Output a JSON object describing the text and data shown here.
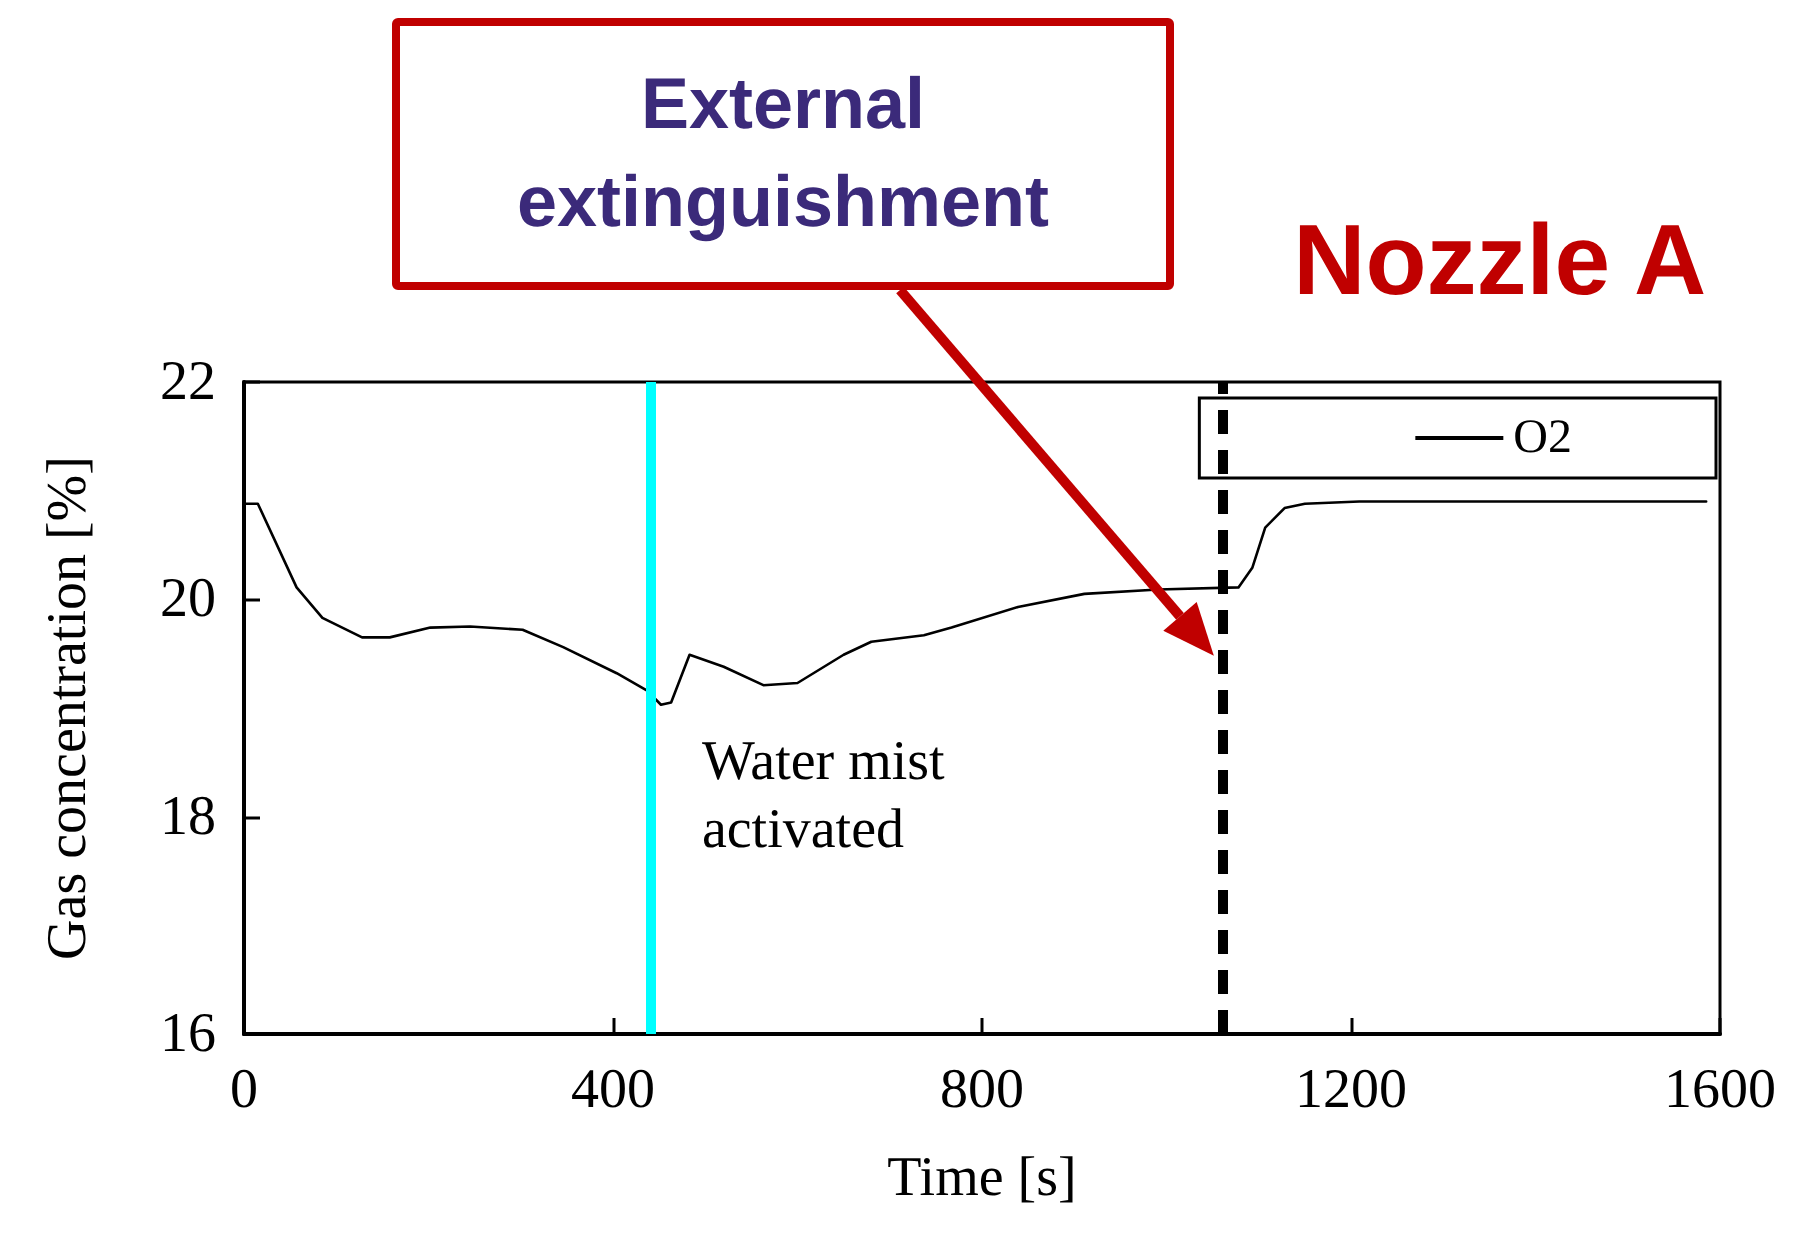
{
  "chart_data": {
    "type": "line",
    "title": "Nozzle A",
    "xlabel": "Time [s]",
    "ylabel": "Gas concentration [%]",
    "series": [
      {
        "name": "O2",
        "color": "#000000",
        "x": [
          0,
          15,
          57,
          85,
          128,
          158,
          202,
          245,
          302,
          346,
          404,
          437,
          452,
          463,
          483,
          520,
          563,
          600,
          650,
          680,
          737,
          767,
          839,
          911,
          991,
          1078,
          1093,
          1107,
          1128,
          1150,
          1209,
          1585
        ],
        "values": [
          20.88,
          20.88,
          20.11,
          19.83,
          19.65,
          19.65,
          19.74,
          19.75,
          19.72,
          19.56,
          19.32,
          19.16,
          19.03,
          19.05,
          19.49,
          19.38,
          19.21,
          19.23,
          19.49,
          19.61,
          19.67,
          19.74,
          19.93,
          20.05,
          20.09,
          20.11,
          20.29,
          20.66,
          20.84,
          20.88,
          20.9,
          20.9
        ]
      }
    ],
    "xlim": [
      0,
      1600
    ],
    "xticks": [
      0,
      400,
      800,
      1200,
      1600
    ],
    "ylim": [
      16,
      22
    ],
    "yticks": [
      16,
      18,
      20,
      22
    ],
    "grid": false,
    "legend": "top right",
    "ref_lines": [
      {
        "axis": "x",
        "value": 440,
        "label": "Water mist activated",
        "color": "#00ffff",
        "line_style": "solid"
      },
      {
        "axis": "x",
        "value": 1060,
        "color": "#000000",
        "line_style": "dashed"
      }
    ],
    "annotations": [
      "External extinguishment"
    ]
  }
}
